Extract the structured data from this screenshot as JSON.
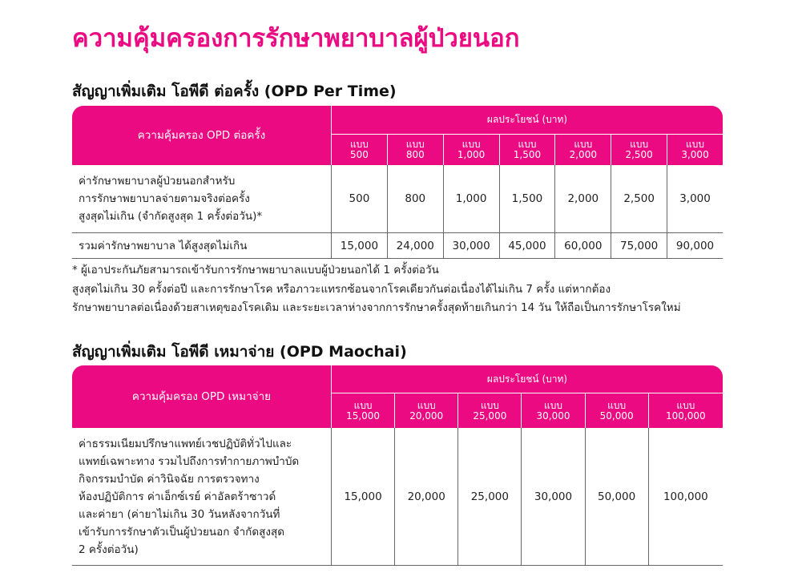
{
  "title": "ความคุ้มครองการรักษาพยาบาลผู้ป่วยนอก",
  "opd_per_time": {
    "heading": "สัญญาเพิ่มเติม โอพีดี ต่อครั้ง (OPD Per Time)",
    "row_header": "ความคุ้มครอง OPD ต่อครั้ง",
    "benefit_header": "ผลประโยชน์ (บาท)",
    "plan_prefix": "แบบ",
    "plans": [
      "500",
      "800",
      "1,000",
      "1,500",
      "2,000",
      "2,500",
      "3,000"
    ],
    "rows": [
      {
        "label": [
          "ค่ารักษาพยาบาลผู้ป่วยนอกสำหรับ",
          "การรักษาพยาบาลจ่ายตามจริงต่อครั้ง",
          "สูงสุดไม่เกิน (จำกัดสูงสุด 1 ครั้งต่อวัน)*"
        ],
        "values": [
          "500",
          "800",
          "1,000",
          "1,500",
          "2,000",
          "2,500",
          "3,000"
        ]
      },
      {
        "label": [
          "รวมค่ารักษาพยาบาล ได้สูงสุดไม่เกิน"
        ],
        "values": [
          "15,000",
          "24,000",
          "30,000",
          "45,000",
          "60,000",
          "75,000",
          "90,000"
        ]
      }
    ],
    "notes": [
      "* ผู้เอาประกันภัยสามารถเข้ารับการรักษาพยาบาลแบบผู้ป่วยนอกได้ 1 ครั้งต่อวัน",
      "สูงสุดไม่เกิน 30 ครั้งต่อปี และการรักษาโรค หรือภาวะแทรกซ้อนจากโรคเดียวกันต่อเนื่องได้ไม่เกิน 7 ครั้ง แต่หากต้อง",
      "รักษาพยาบาลต่อเนื่องด้วยสาเหตุของโรคเดิม และระยะเวลาห่างจากการรักษาครั้งสุดท้ายเกินกว่า 14 วัน ให้ถือเป็นการรักษาโรคใหม่"
    ]
  },
  "opd_maochai": {
    "heading": "สัญญาเพิ่มเติม โอพีดี เหมาจ่าย (OPD Maochai)",
    "row_header": "ความคุ้มครอง OPD เหมาจ่าย",
    "benefit_header": "ผลประโยชน์ (บาท)",
    "plan_prefix": "แบบ",
    "plans": [
      "15,000",
      "20,000",
      "25,000",
      "30,000",
      "50,000",
      "100,000"
    ],
    "rows": [
      {
        "label": [
          "ค่าธรรมเนียมปรึกษาแพทย์เวชปฏิบัติทั่วไปและ",
          "แพทย์เฉพาะทาง รวมไปถึงการทำกายภาพบำบัด",
          "กิจกรรมบำบัด ค่าวินิจฉัย การตรวจทาง",
          "ห้องปฏิบัติการ ค่าเอ็กซ์เรย์ ค่าอัลตร้าซาวด์",
          "และค่ายา (ค่ายาไม่เกิน 30 วันหลังจากวันที่",
          "เข้ารับการรักษาตัวเป็นผู้ป่วยนอก จำกัดสูงสุด",
          "2 ครั้งต่อวัน)"
        ],
        "values": [
          "15,000",
          "20,000",
          "25,000",
          "30,000",
          "50,000",
          "100,000"
        ]
      }
    ]
  }
}
